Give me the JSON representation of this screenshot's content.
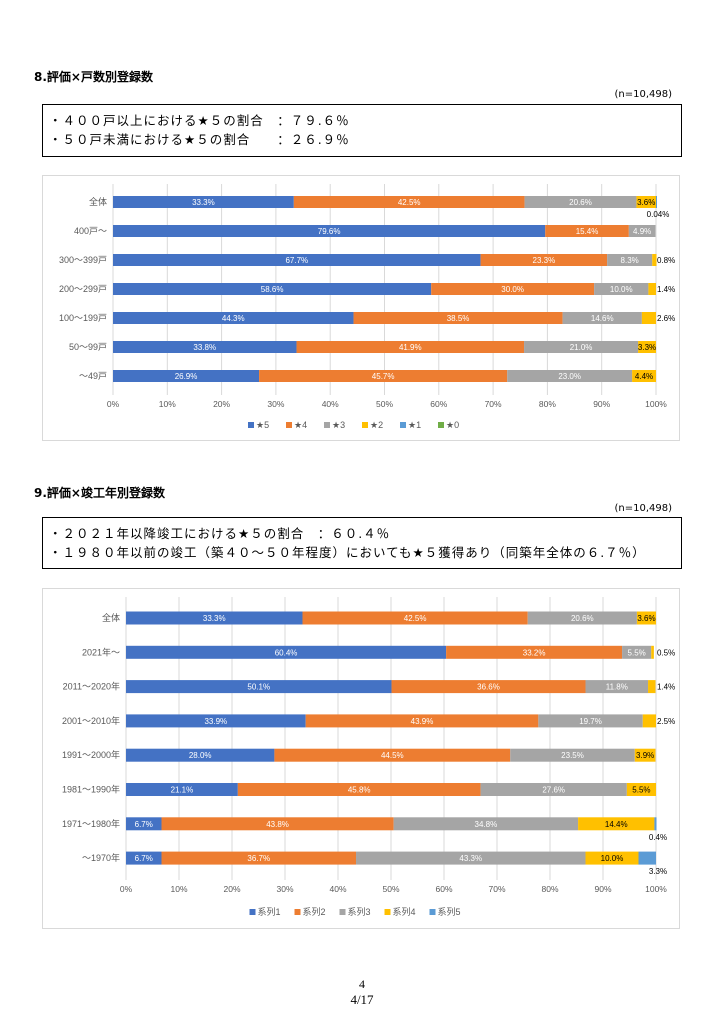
{
  "section8": {
    "heading": "8.評価×戸数別登録数",
    "n": "(n=10,498)",
    "notes": [
      "・４００戸以上における★５の割合　：７９.６％",
      "・５０戸未満における★５の割合　　：２６.９％"
    ]
  },
  "section9": {
    "heading": "9.評価×竣工年別登録数",
    "n": "(n=10,498)",
    "notes": [
      "・２０２１年以降竣工における★５の割合　：６０.４％",
      "・１９８０年以前の竣工（築４０～５０年程度）においても★５獲得あり（同築年全体の６.７％）"
    ]
  },
  "colors": [
    "#4472C4",
    "#ED7D31",
    "#A5A5A5",
    "#FFC000",
    "#5B9BD5",
    "#70AD47"
  ],
  "chart_data": [
    {
      "type": "bar",
      "orientation": "horizontal-stacked-100",
      "categories": [
        "全体",
        "400戸～",
        "300～399戸",
        "200～299戸",
        "100～199戸",
        "50～99戸",
        "～49戸"
      ],
      "series": [
        {
          "name": "★5",
          "values": [
            33.3,
            79.6,
            67.7,
            58.6,
            44.3,
            33.8,
            26.9
          ]
        },
        {
          "name": "★4",
          "values": [
            42.5,
            15.4,
            23.3,
            30.0,
            38.5,
            41.9,
            45.7
          ]
        },
        {
          "name": "★3",
          "values": [
            20.6,
            4.9,
            8.3,
            10.0,
            14.6,
            21.0,
            23.0
          ]
        },
        {
          "name": "★2",
          "values": [
            3.6,
            null,
            0.8,
            1.4,
            2.6,
            3.3,
            4.4
          ]
        },
        {
          "name": "★1",
          "values": [
            0.04,
            null,
            null,
            null,
            null,
            null,
            null
          ]
        },
        {
          "name": "★0",
          "values": [
            null,
            null,
            null,
            null,
            null,
            null,
            null
          ]
        }
      ],
      "xticks": [
        "0%",
        "10%",
        "20%",
        "30%",
        "40%",
        "50%",
        "60%",
        "70%",
        "80%",
        "90%",
        "100%"
      ],
      "xlim": [
        0,
        100
      ],
      "grid": true,
      "legend": "bottom"
    },
    {
      "type": "bar",
      "orientation": "horizontal-stacked-100",
      "categories": [
        "全体",
        "2021年～",
        "2011～2020年",
        "2001～2010年",
        "1991～2000年",
        "1981～1990年",
        "1971～1980年",
        "～1970年"
      ],
      "series": [
        {
          "name": "系列1",
          "values": [
            33.3,
            60.4,
            50.1,
            33.9,
            28.0,
            21.1,
            6.7,
            6.7
          ]
        },
        {
          "name": "系列2",
          "values": [
            42.5,
            33.2,
            36.6,
            43.9,
            44.5,
            45.8,
            43.8,
            36.7
          ]
        },
        {
          "name": "系列3",
          "values": [
            20.6,
            5.5,
            11.8,
            19.7,
            23.5,
            27.6,
            34.8,
            43.3
          ]
        },
        {
          "name": "系列4",
          "values": [
            3.6,
            0.5,
            1.4,
            2.5,
            3.9,
            5.5,
            14.4,
            10.0
          ]
        },
        {
          "name": "系列5",
          "values": [
            null,
            null,
            null,
            null,
            null,
            null,
            0.4,
            3.3
          ]
        }
      ],
      "xticks": [
        "0%",
        "10%",
        "20%",
        "30%",
        "40%",
        "50%",
        "60%",
        "70%",
        "80%",
        "90%",
        "100%"
      ],
      "xlim": [
        0,
        100
      ],
      "grid": true,
      "legend": "bottom"
    }
  ],
  "footer": {
    "page": "4",
    "page_of": "4/17"
  }
}
